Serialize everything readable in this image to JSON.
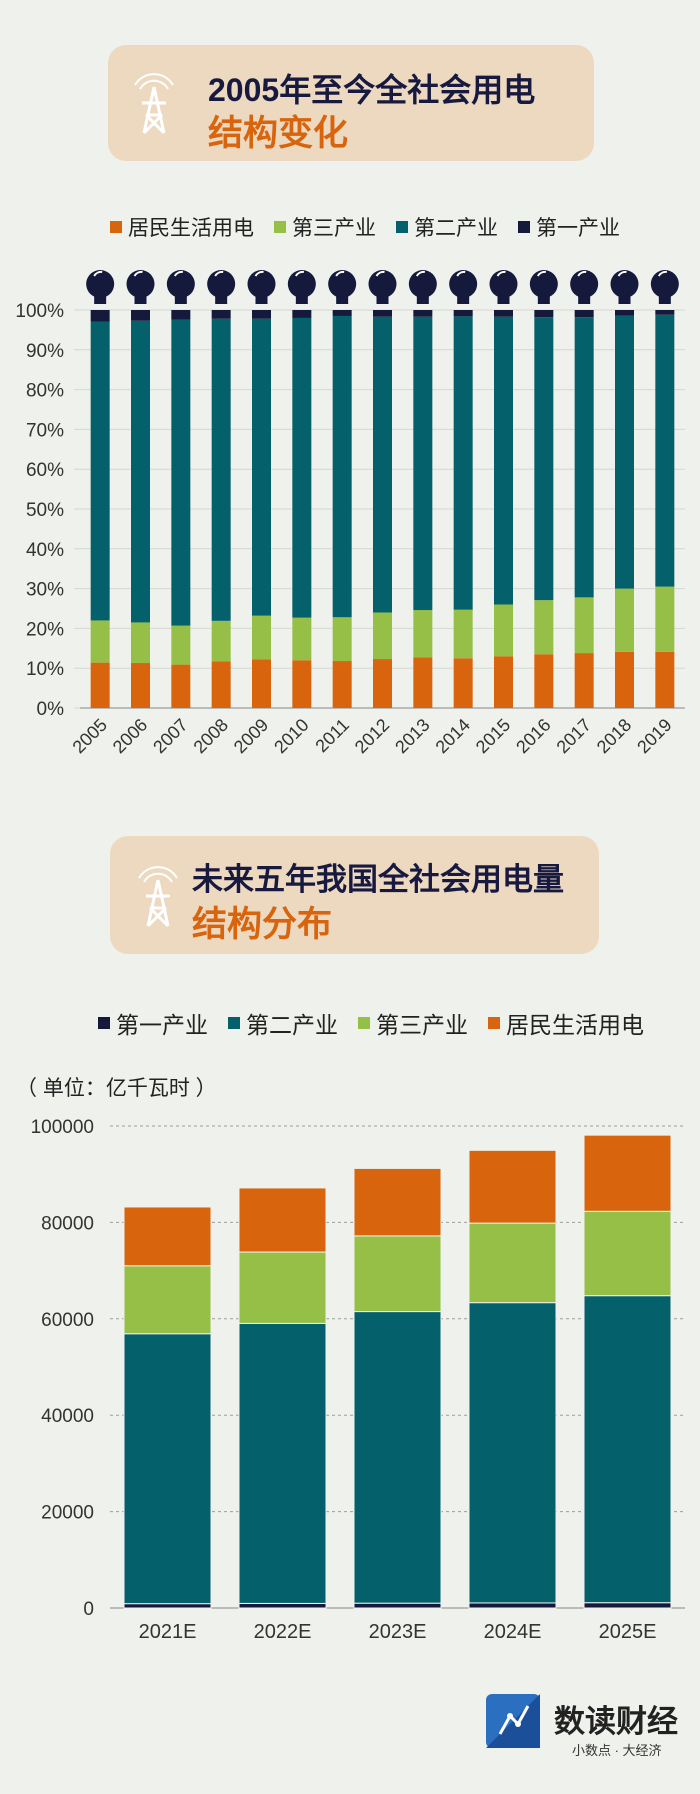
{
  "chart1": {
    "title_line1": "2005年至今全社会用电",
    "title_line2": "结构变化",
    "legend": [
      {
        "label": "居民生活用电",
        "color": "#d8650e"
      },
      {
        "label": "第三产业",
        "color": "#96bf47"
      },
      {
        "label": "第二产业",
        "color": "#04616b"
      },
      {
        "label": "第一产业",
        "color": "#151a3c"
      }
    ]
  },
  "chart2": {
    "title_line1": "未来五年我国全社会用电量",
    "title_line2": "结构分布",
    "legend": [
      {
        "label": "第一产业",
        "color": "#151a3c"
      },
      {
        "label": "第二产业",
        "color": "#04616b"
      },
      {
        "label": "第三产业",
        "color": "#96bf47"
      },
      {
        "label": "居民生活用电",
        "color": "#d8650e"
      }
    ],
    "unit": "（ 单位：亿千瓦时 ）"
  },
  "brand": {
    "name": "数读财经",
    "slogan": "小数点 · 大经济"
  },
  "chart_data": [
    {
      "type": "bar",
      "stacked": true,
      "title": "2005年至今全社会用电结构变化",
      "categories": [
        "2005",
        "2006",
        "2007",
        "2008",
        "2009",
        "2010",
        "2011",
        "2012",
        "2013",
        "2014",
        "2015",
        "2016",
        "2017",
        "2018",
        "2019"
      ],
      "yticks": [
        "0%",
        "10%",
        "20%",
        "30%",
        "40%",
        "50%",
        "60%",
        "70%",
        "80%",
        "90%",
        "100%"
      ],
      "ylim": [
        0,
        100
      ],
      "series": [
        {
          "name": "居民生活用电",
          "color": "#d8650e",
          "values": [
            11.4,
            11.3,
            10.9,
            11.7,
            12.2,
            12.0,
            11.8,
            12.3,
            12.7,
            12.5,
            13.0,
            13.5,
            13.8,
            14.1,
            14.1
          ]
        },
        {
          "name": "第三产业",
          "color": "#96bf47",
          "values": [
            10.6,
            10.2,
            9.8,
            10.2,
            11.0,
            10.7,
            11.0,
            11.7,
            11.9,
            12.2,
            13.0,
            13.6,
            14.0,
            15.9,
            16.4
          ]
        },
        {
          "name": "第二产业",
          "color": "#04616b",
          "values": [
            75.1,
            75.8,
            76.9,
            75.9,
            74.6,
            75.3,
            75.7,
            74.3,
            73.7,
            73.7,
            72.3,
            71.1,
            70.4,
            68.6,
            68.3
          ]
        },
        {
          "name": "第一产业",
          "color": "#151a3c",
          "values": [
            2.9,
            2.7,
            2.4,
            2.2,
            2.2,
            2.0,
            1.5,
            1.7,
            1.7,
            1.6,
            1.7,
            1.8,
            1.8,
            1.4,
            1.2
          ]
        }
      ]
    },
    {
      "type": "bar",
      "stacked": true,
      "title": "未来五年我国全社会用电量结构分布",
      "ylabel": "单位：亿千瓦时",
      "categories": [
        "2021E",
        "2022E",
        "2023E",
        "2024E",
        "2025E"
      ],
      "yticks": [
        "0",
        "20000",
        "40000",
        "60000",
        "80000",
        "100000"
      ],
      "ylim": [
        0,
        100000
      ],
      "series": [
        {
          "name": "第一产业",
          "color": "#151a3c",
          "values": [
            900,
            950,
            1000,
            1050,
            1100
          ]
        },
        {
          "name": "第二产业",
          "color": "#04616b",
          "values": [
            56000,
            58100,
            60500,
            62300,
            63700
          ]
        },
        {
          "name": "第三产业",
          "color": "#96bf47",
          "values": [
            14100,
            14800,
            15700,
            16500,
            17500
          ]
        },
        {
          "name": "居民生活用电",
          "color": "#d8650e",
          "values": [
            12200,
            13300,
            14000,
            15100,
            15800
          ]
        }
      ]
    }
  ]
}
